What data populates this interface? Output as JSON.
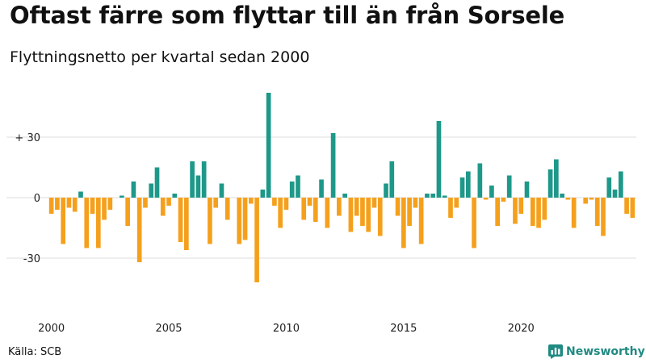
{
  "title": "Oftast färre som flyttar till än från Sorsele",
  "subtitle": "Flyttningsnetto per kvartal sedan 2000",
  "source": "Källa: SCB",
  "brand": {
    "name": "Newsworthy",
    "icon": "bar-chart-logo-icon"
  },
  "colors": {
    "positive": "#1e9889",
    "negative": "#f5a01c",
    "grid": "#dddddd",
    "brand": "#1f8a82"
  },
  "chart_data": {
    "type": "bar",
    "x_start": "2000 Q1",
    "frequency": "quarterly",
    "values": [
      -8,
      -6,
      -23,
      -5,
      -7,
      3,
      -25,
      -8,
      -25,
      -11,
      -6,
      0,
      1,
      -14,
      8,
      -32,
      -5,
      7,
      15,
      -9,
      -4,
      2,
      -22,
      -26,
      18,
      11,
      18,
      -23,
      -5,
      7,
      -11,
      0,
      -23,
      -21,
      -3,
      -42,
      4,
      52,
      -4,
      -15,
      -6,
      8,
      11,
      -11,
      -4,
      -12,
      9,
      -15,
      32,
      -9,
      2,
      -17,
      -9,
      -14,
      -17,
      -5,
      -19,
      7,
      18,
      -9,
      -25,
      -14,
      -5,
      -23,
      2,
      2,
      38,
      1,
      -10,
      -5,
      10,
      13,
      -25,
      17,
      -1,
      6,
      -14,
      -2,
      11,
      -13,
      -8,
      8,
      -14,
      -15,
      -11,
      14,
      19,
      2,
      -1,
      -15,
      0,
      -3,
      -1,
      -14,
      -19,
      10,
      4,
      13,
      -8,
      -10
    ],
    "x_tick_labels": [
      "2000",
      "2005",
      "2010",
      "2015",
      "2020"
    ],
    "y_tick_labels": [
      "+ 30",
      "0",
      "-30"
    ],
    "y_ticks": [
      30,
      0,
      -30
    ],
    "ylim": [
      -45,
      55
    ],
    "grid": true,
    "legend": "none"
  }
}
